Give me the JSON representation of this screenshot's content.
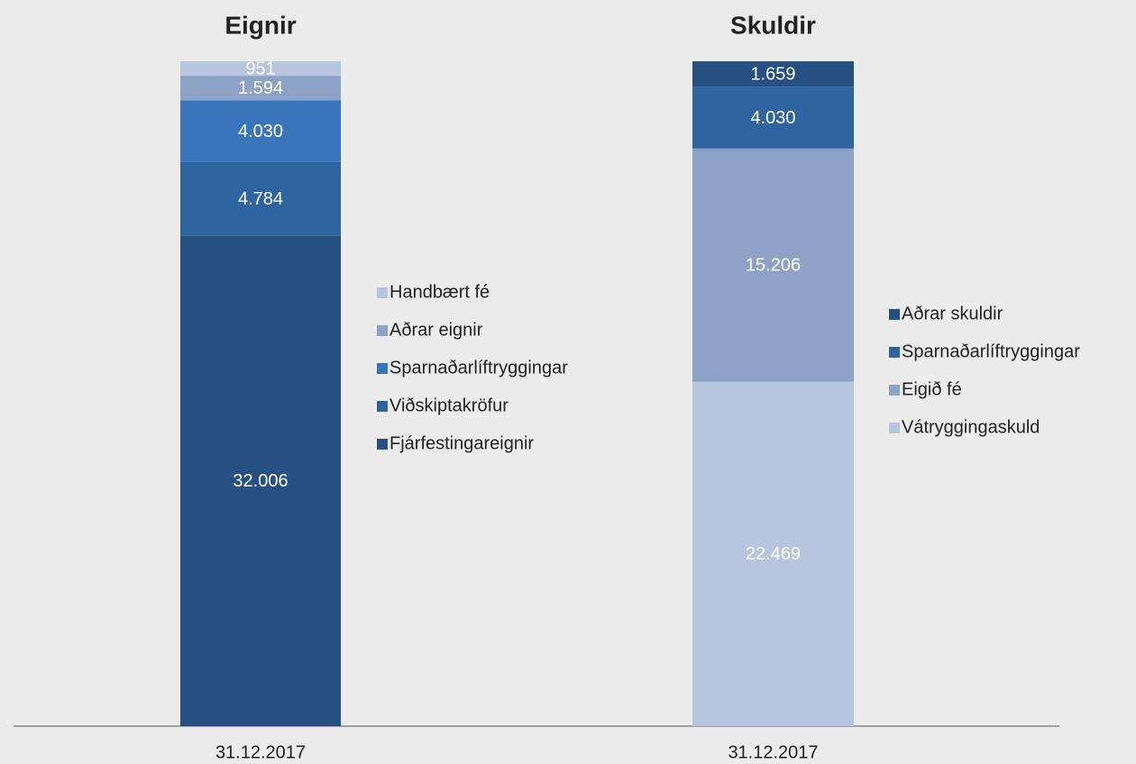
{
  "chart_data": [
    {
      "type": "bar",
      "stacked": true,
      "title": "Eignir",
      "categories": [
        "31.12.2017"
      ],
      "series": [
        {
          "name": "Fjárfestingareignir",
          "color": "#264f82",
          "values": [
            32006
          ],
          "value_labels": [
            "32.006"
          ]
        },
        {
          "name": "Viðskiptakröfur",
          "color": "#2e65a0",
          "values": [
            4784
          ],
          "value_labels": [
            "4.784"
          ]
        },
        {
          "name": "Sparnaðarlíftryggingar",
          "color": "#3a75bc",
          "values": [
            4030
          ],
          "value_labels": [
            "4.030"
          ]
        },
        {
          "name": "Aðrar eignir",
          "color": "#8ea2c8",
          "values": [
            1594
          ],
          "value_labels": [
            "1.594"
          ]
        },
        {
          "name": "Handbært fé",
          "color": "#b8c5de",
          "values": [
            951
          ],
          "value_labels": [
            "951"
          ]
        }
      ]
    },
    {
      "type": "bar",
      "stacked": true,
      "title": "Skuldir",
      "categories": [
        "31.12.2017"
      ],
      "series": [
        {
          "name": "Vátryggingaskuld",
          "color": "#b8c5de",
          "values": [
            22469
          ],
          "value_labels": [
            "22.469"
          ]
        },
        {
          "name": "Eigið fé",
          "color": "#8ea2c8",
          "values": [
            15206
          ],
          "value_labels": [
            "15.206"
          ]
        },
        {
          "name": "Sparnaðarlíftryggingar",
          "color": "#2e65a0",
          "values": [
            4030
          ],
          "value_labels": [
            "4.030"
          ]
        },
        {
          "name": "Aðrar skuldir",
          "color": "#264f82",
          "values": [
            1659
          ],
          "value_labels": [
            "1.659"
          ]
        }
      ]
    }
  ]
}
